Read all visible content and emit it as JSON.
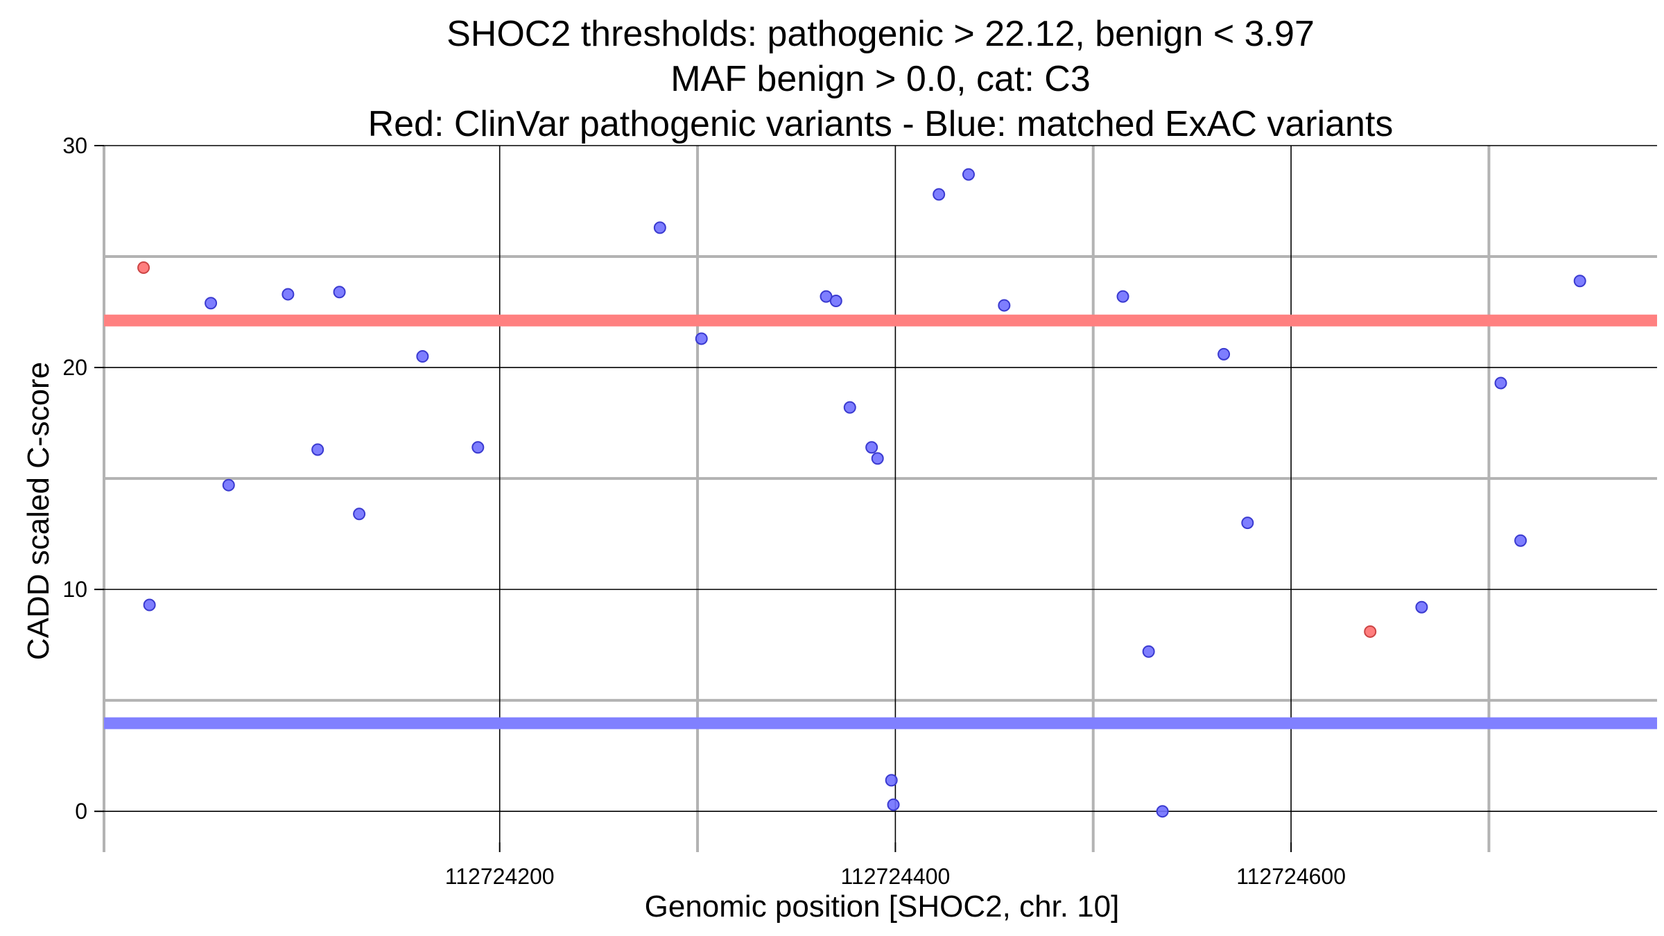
{
  "chart_data": {
    "type": "scatter",
    "title_lines": [
      "SHOC2 thresholds: pathogenic > 22.12, benign < 3.97",
      "MAF benign > 0.0, cat: C3",
      "Red: ClinVar pathogenic variants - Blue: matched ExAC variants"
    ],
    "xlabel": "Genomic position [SHOC2, chr. 10]",
    "ylabel": "CADD scaled C-score",
    "xlim": [
      112724000,
      112724785
    ],
    "ylim": [
      -1.4,
      30
    ],
    "x_ticks": [
      112724200,
      112724400,
      112724600
    ],
    "x_tick_labels": [
      "112724200",
      "112724400",
      "112724600"
    ],
    "x_minor_gridlines": [
      112724000,
      112724300,
      112724500,
      112724700
    ],
    "y_ticks": [
      0,
      10,
      20,
      30
    ],
    "y_tick_labels": [
      "0",
      "10",
      "20",
      "30"
    ],
    "y_minor_gridlines": [
      5,
      15,
      25
    ],
    "thresholds": [
      {
        "name": "pathogenic",
        "value": 22.12,
        "color": "#ff8080"
      },
      {
        "name": "benign",
        "value": 3.97,
        "color": "#8080ff"
      }
    ],
    "series": [
      {
        "name": "ClinVar pathogenic variants",
        "color": "#ff7070",
        "points": [
          {
            "x": 112724020,
            "y": 24.5
          },
          {
            "x": 112724640,
            "y": 8.1
          }
        ]
      },
      {
        "name": "matched ExAC variants",
        "color": "#7070ff",
        "points": [
          {
            "x": 112724023,
            "y": 9.3
          },
          {
            "x": 112724054,
            "y": 22.9
          },
          {
            "x": 112724063,
            "y": 14.7
          },
          {
            "x": 112724093,
            "y": 23.3
          },
          {
            "x": 112724108,
            "y": 16.3
          },
          {
            "x": 112724119,
            "y": 23.4
          },
          {
            "x": 112724129,
            "y": 13.4
          },
          {
            "x": 112724161,
            "y": 20.5
          },
          {
            "x": 112724189,
            "y": 16.4
          },
          {
            "x": 112724281,
            "y": 26.3
          },
          {
            "x": 112724302,
            "y": 21.3
          },
          {
            "x": 112724365,
            "y": 23.2
          },
          {
            "x": 112724370,
            "y": 23.0
          },
          {
            "x": 112724377,
            "y": 18.2
          },
          {
            "x": 112724388,
            "y": 16.4
          },
          {
            "x": 112724391,
            "y": 15.9
          },
          {
            "x": 112724398,
            "y": 1.4
          },
          {
            "x": 112724399,
            "y": 0.3
          },
          {
            "x": 112724422,
            "y": 27.8
          },
          {
            "x": 112724437,
            "y": 28.7
          },
          {
            "x": 112724455,
            "y": 22.8
          },
          {
            "x": 112724515,
            "y": 23.2
          },
          {
            "x": 112724528,
            "y": 7.2
          },
          {
            "x": 112724535,
            "y": 0.0
          },
          {
            "x": 112724566,
            "y": 20.6
          },
          {
            "x": 112724578,
            "y": 13.0
          },
          {
            "x": 112724666,
            "y": 9.2
          },
          {
            "x": 112724706,
            "y": 19.3
          },
          {
            "x": 112724716,
            "y": 12.2
          },
          {
            "x": 112724746,
            "y": 23.9
          }
        ]
      }
    ]
  }
}
